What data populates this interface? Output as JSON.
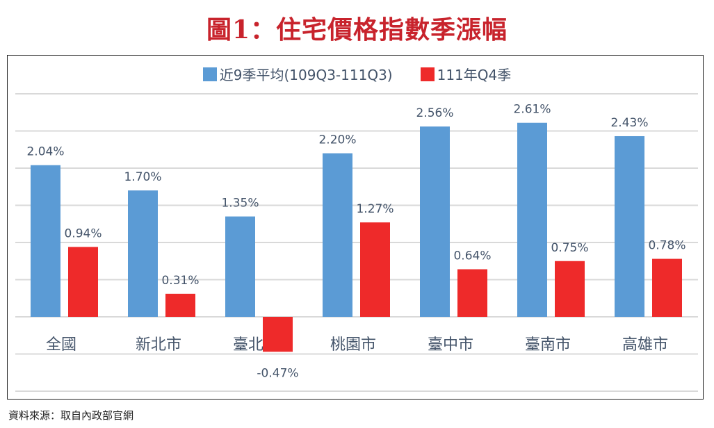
{
  "chart_data": {
    "type": "bar",
    "title": "圖1：住宅價格指數季漲幅",
    "categories": [
      "全國",
      "新北市",
      "臺北市",
      "桃園市",
      "臺中市",
      "臺南市",
      "高雄市"
    ],
    "series": [
      {
        "name": "近9季平均(109Q3-111Q3)",
        "color": "#5b9bd5",
        "values": [
          2.04,
          1.7,
          1.35,
          2.2,
          2.56,
          2.61,
          2.43
        ],
        "labels": [
          "2.04%",
          "1.70%",
          "1.35%",
          "2.20%",
          "2.56%",
          "2.61%",
          "2.43%"
        ]
      },
      {
        "name": "111年Q4季",
        "color": "#ee2a2a",
        "values": [
          0.94,
          0.31,
          -0.47,
          1.27,
          0.64,
          0.75,
          0.78
        ],
        "labels": [
          "0.94%",
          "0.31%",
          "-0.47%",
          "1.27%",
          "0.64%",
          "0.75%",
          "0.78%"
        ]
      }
    ],
    "xlabel": "",
    "ylabel": "",
    "ylim": [
      -1.0,
      3.0
    ],
    "grid_step": 0.5,
    "grid": true,
    "legend_placement": "top-center"
  },
  "source": "資料來源：取自內政部官網"
}
